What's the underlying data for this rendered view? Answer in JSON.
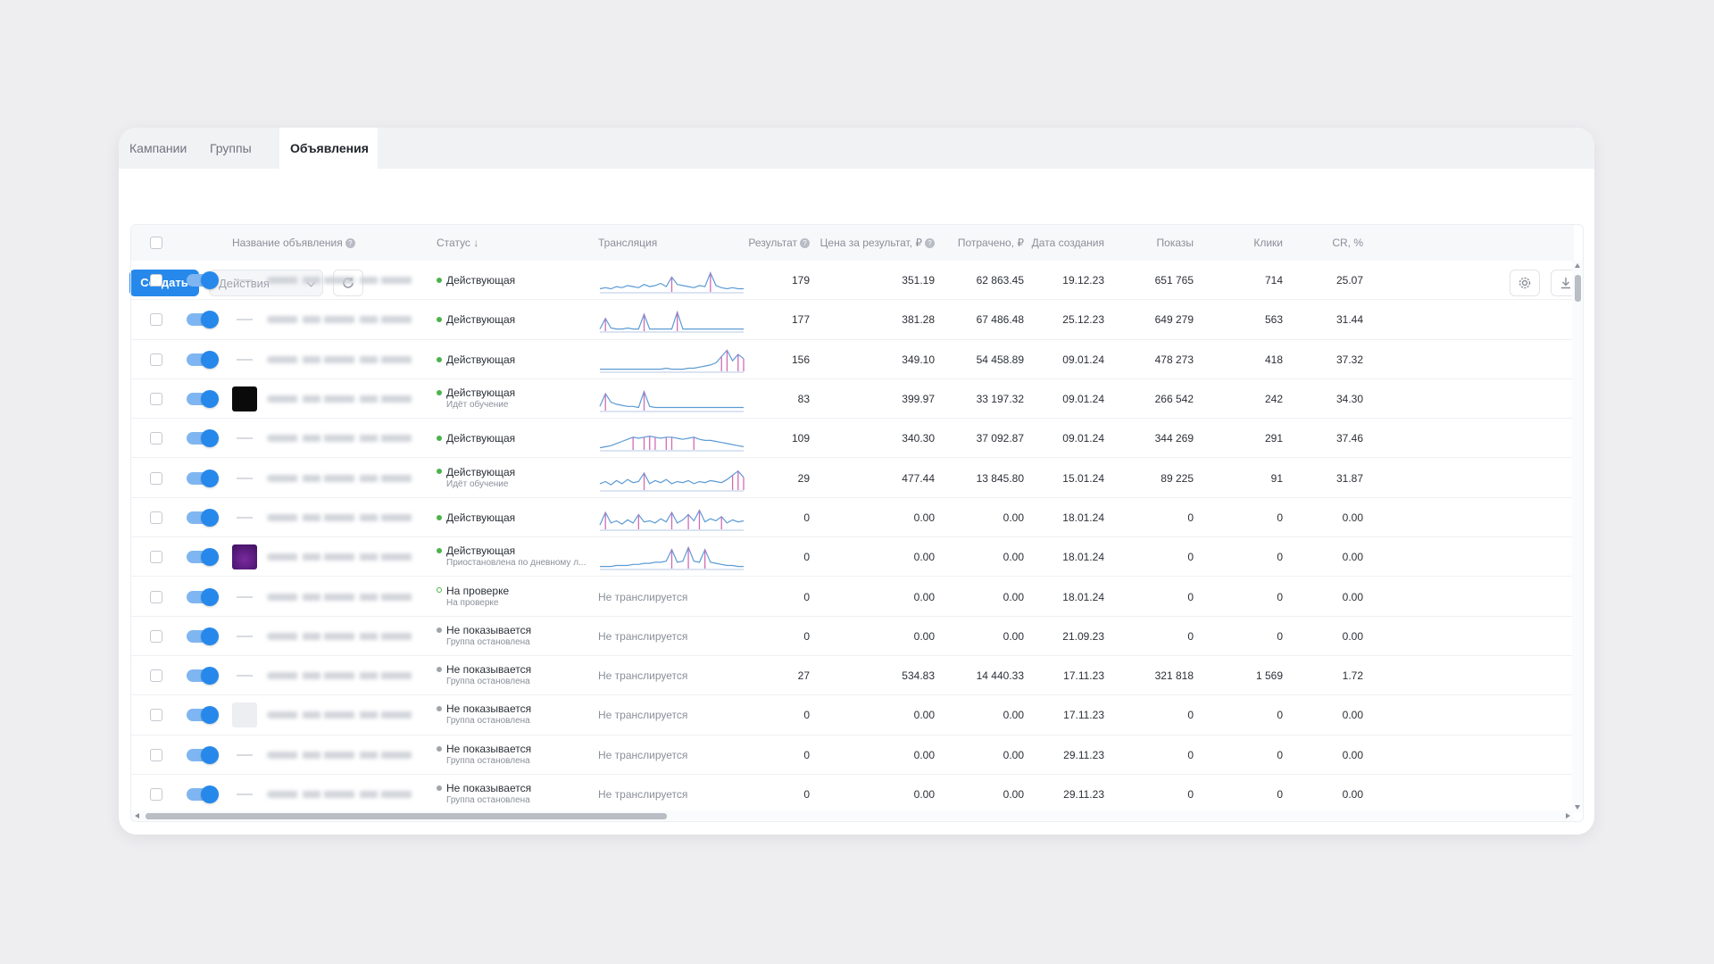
{
  "tabs": [
    {
      "label": "Кампании",
      "active": false
    },
    {
      "label": "Группы",
      "active": false
    },
    {
      "label": "Объявления",
      "active": true
    }
  ],
  "toolbar": {
    "create_label": "Создать",
    "actions_label": "Действия",
    "refresh_icon": "refresh-icon",
    "settings_icon": "gear-icon",
    "download_icon": "download-icon"
  },
  "columns": {
    "name": "Название объявления",
    "status": "Статус",
    "status_sort": "↓",
    "broadcast": "Трансляция",
    "result": "Результат",
    "cost_per_result": "Цена за результат, ₽",
    "spent": "Потрачено, ₽",
    "created": "Дата создания",
    "impressions": "Показы",
    "clicks": "Клики",
    "cr": "CR, %"
  },
  "colors": {
    "accent": "#2688eb",
    "active_dot": "#4bb34b",
    "moderation_dot": "#4bb34b",
    "paused_dot": "#a0a4ab",
    "spark_blue": "#5b9bd5",
    "spark_pink": "#d16ab8"
  },
  "rows": [
    {
      "thumb": "dash",
      "status": "Действующая",
      "status_sub": "",
      "dot": "active",
      "spark": [
        3,
        4,
        3,
        5,
        4,
        6,
        5,
        4,
        7,
        5,
        6,
        8,
        5,
        14,
        7,
        6,
        5,
        4,
        6,
        5,
        18,
        6,
        4,
        3,
        4,
        3,
        3
      ],
      "result": "179",
      "cpr": "351.19",
      "spent": "62 863.45",
      "created": "19.12.23",
      "impr": "651 765",
      "clicks": "714",
      "cr": "25.07"
    },
    {
      "thumb": "dash",
      "status": "Действующая",
      "status_sub": "",
      "dot": "active",
      "spark": [
        2,
        12,
        3,
        2,
        2,
        3,
        2,
        2,
        16,
        2,
        2,
        2,
        2,
        2,
        18,
        2,
        2,
        2,
        2,
        2,
        2,
        2,
        2,
        2,
        2,
        2,
        2
      ],
      "result": "177",
      "cpr": "381.28",
      "spent": "67 486.48",
      "created": "25.12.23",
      "impr": "649 279",
      "clicks": "563",
      "cr": "31.44"
    },
    {
      "thumb": "dash",
      "status": "Действующая",
      "status_sub": "",
      "dot": "active",
      "spark": [
        2,
        2,
        2,
        2,
        2,
        2,
        2,
        2,
        2,
        2,
        2,
        2,
        3,
        2,
        2,
        2,
        3,
        3,
        4,
        5,
        6,
        8,
        14,
        20,
        10,
        16,
        12
      ],
      "result": "156",
      "cpr": "349.10",
      "spent": "54 458.89",
      "created": "09.01.24",
      "impr": "478 273",
      "clicks": "418",
      "cr": "37.32"
    },
    {
      "thumb": "black",
      "status": "Действующая",
      "status_sub": "Идёт обучение",
      "dot": "active",
      "spark": [
        4,
        16,
        8,
        6,
        5,
        4,
        4,
        3,
        18,
        4,
        3,
        3,
        3,
        3,
        3,
        3,
        3,
        3,
        3,
        3,
        3,
        3,
        3,
        3,
        3,
        3,
        3
      ],
      "result": "83",
      "cpr": "399.97",
      "spent": "33 197.32",
      "created": "09.01.24",
      "impr": "266 542",
      "clicks": "242",
      "cr": "34.30"
    },
    {
      "thumb": "dash",
      "status": "Действующая",
      "status_sub": "",
      "dot": "active",
      "spark": [
        2,
        3,
        4,
        6,
        8,
        10,
        12,
        11,
        12,
        13,
        12,
        11,
        12,
        12,
        11,
        10,
        11,
        12,
        10,
        9,
        9,
        8,
        7,
        6,
        5,
        4,
        3
      ],
      "result": "109",
      "cpr": "340.30",
      "spent": "37 092.87",
      "created": "09.01.24",
      "impr": "344 269",
      "clicks": "291",
      "cr": "37.46"
    },
    {
      "thumb": "dash",
      "status": "Действующая",
      "status_sub": "Идёт обучение",
      "dot": "active",
      "spark": [
        6,
        8,
        5,
        9,
        6,
        10,
        7,
        8,
        16,
        6,
        9,
        7,
        10,
        6,
        8,
        7,
        9,
        6,
        8,
        7,
        9,
        8,
        7,
        10,
        14,
        18,
        12
      ],
      "result": "29",
      "cpr": "477.44",
      "spent": "13 845.80",
      "created": "15.01.24",
      "impr": "89 225",
      "clicks": "91",
      "cr": "31.87"
    },
    {
      "thumb": "dash",
      "status": "Действующая",
      "status_sub": "",
      "dot": "active",
      "spark": [
        4,
        16,
        6,
        8,
        5,
        9,
        6,
        14,
        7,
        8,
        6,
        10,
        7,
        16,
        6,
        9,
        14,
        8,
        18,
        7,
        10,
        8,
        12,
        6,
        9,
        7,
        8
      ],
      "result": "0",
      "cpr": "0.00",
      "spent": "0.00",
      "created": "18.01.24",
      "impr": "0",
      "clicks": "0",
      "cr": "0.00"
    },
    {
      "thumb": "purple",
      "status": "Действующая",
      "status_sub": "Приостановлена по дневному л...",
      "dot": "active",
      "spark": [
        2,
        2,
        2,
        3,
        3,
        3,
        4,
        4,
        5,
        5,
        6,
        6,
        7,
        18,
        6,
        7,
        20,
        7,
        6,
        18,
        6,
        5,
        4,
        3,
        3,
        2,
        2
      ],
      "result": "0",
      "cpr": "0.00",
      "spent": "0.00",
      "created": "18.01.24",
      "impr": "0",
      "clicks": "0",
      "cr": "0.00"
    },
    {
      "thumb": "dash",
      "status": "На проверке",
      "status_sub": "На проверке",
      "dot": "moderation",
      "spark": null,
      "broadcast_text": "Не транслируется",
      "result": "0",
      "cpr": "0.00",
      "spent": "0.00",
      "created": "18.01.24",
      "impr": "0",
      "clicks": "0",
      "cr": "0.00"
    },
    {
      "thumb": "dash",
      "status": "Не показывается",
      "status_sub": "Группа остановлена",
      "dot": "paused",
      "spark": null,
      "broadcast_text": "Не транслируется",
      "result": "0",
      "cpr": "0.00",
      "spent": "0.00",
      "created": "21.09.23",
      "impr": "0",
      "clicks": "0",
      "cr": "0.00"
    },
    {
      "thumb": "dash",
      "status": "Не показывается",
      "status_sub": "Группа остановлена",
      "dot": "paused",
      "spark": null,
      "broadcast_text": "Не транслируется",
      "result": "27",
      "cpr": "534.83",
      "spent": "14 440.33",
      "created": "17.11.23",
      "impr": "321 818",
      "clicks": "1 569",
      "cr": "1.72"
    },
    {
      "thumb": "light",
      "status": "Не показывается",
      "status_sub": "Группа остановлена",
      "dot": "paused",
      "spark": null,
      "broadcast_text": "Не транслируется",
      "result": "0",
      "cpr": "0.00",
      "spent": "0.00",
      "created": "17.11.23",
      "impr": "0",
      "clicks": "0",
      "cr": "0.00"
    },
    {
      "thumb": "dash",
      "status": "Не показывается",
      "status_sub": "Группа остановлена",
      "dot": "paused",
      "spark": null,
      "broadcast_text": "Не транслируется",
      "result": "0",
      "cpr": "0.00",
      "spent": "0.00",
      "created": "29.11.23",
      "impr": "0",
      "clicks": "0",
      "cr": "0.00"
    },
    {
      "thumb": "dash",
      "status": "Не показывается",
      "status_sub": "Группа остановлена",
      "dot": "paused",
      "spark": null,
      "broadcast_text": "Не транслируется",
      "result": "0",
      "cpr": "0.00",
      "spent": "0.00",
      "created": "29.11.23",
      "impr": "0",
      "clicks": "0",
      "cr": "0.00"
    }
  ]
}
